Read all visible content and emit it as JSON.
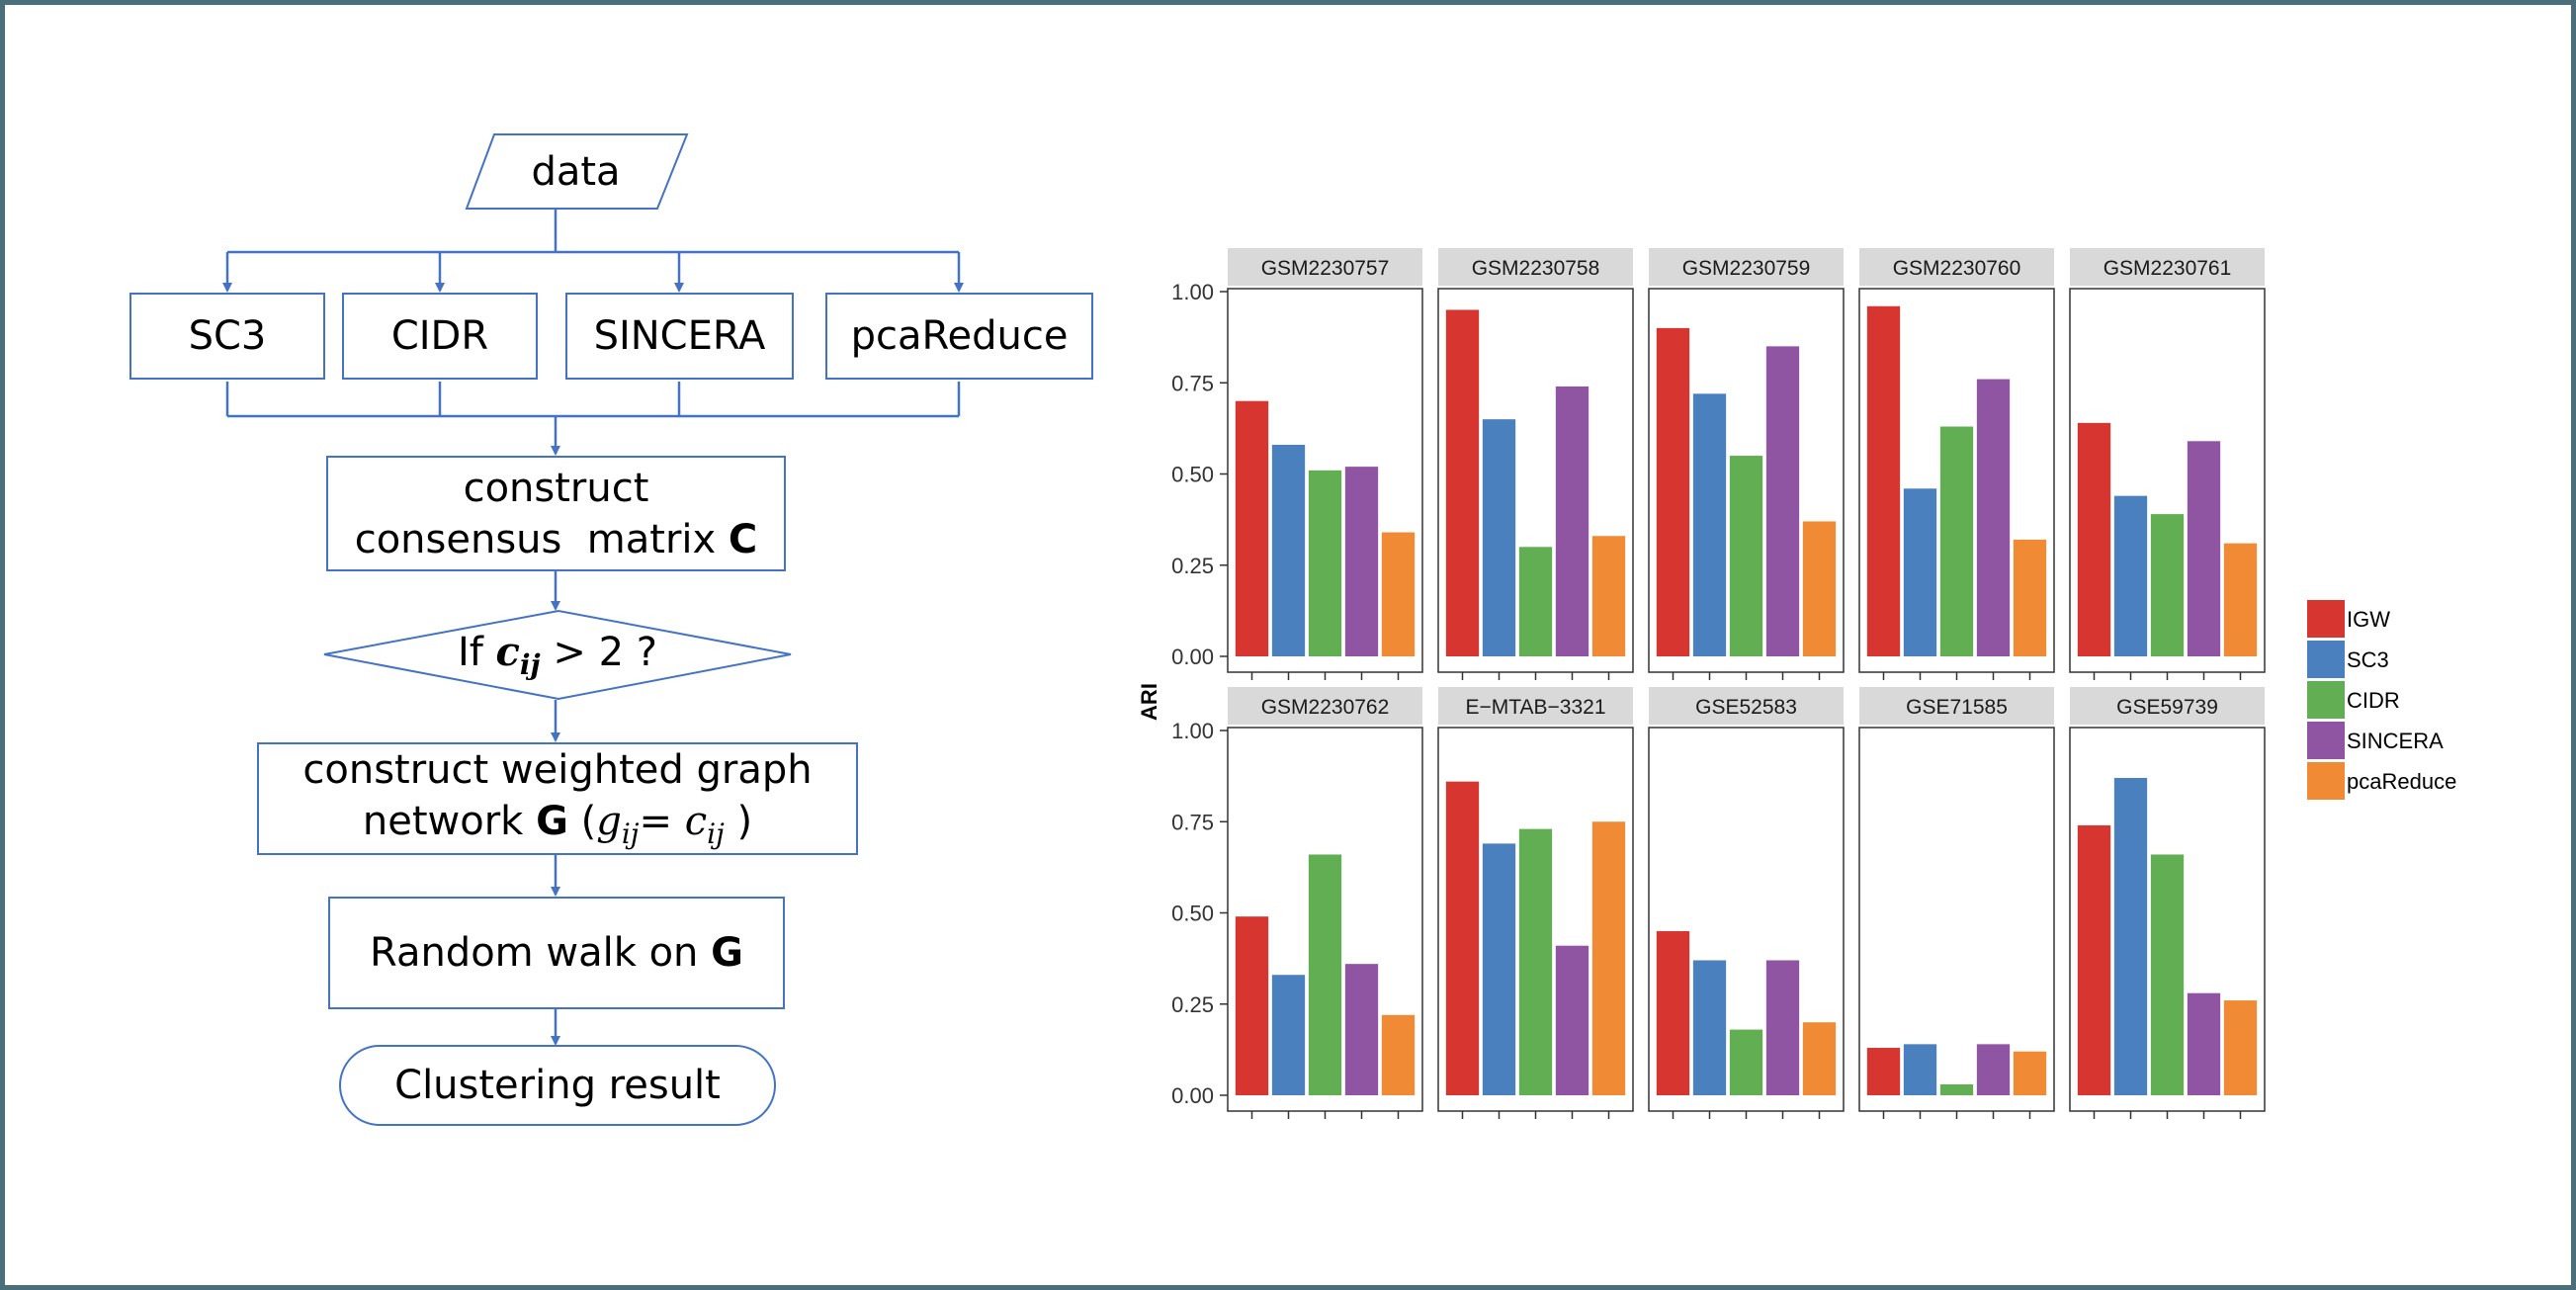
{
  "flowchart": {
    "data_node": "data",
    "methods": [
      "SC3",
      "CIDR",
      "SINCERA",
      "pcaReduce"
    ],
    "construct_line1": "construct",
    "construct_line2": "consensus  matrix ",
    "construct_bold": "C",
    "decision_prefix": "If ",
    "decision_var": "c",
    "decision_sub": "ij",
    "decision_suffix": " > 2 ?",
    "graph_line1": "construct weighted graph",
    "graph_line2_a": "network ",
    "graph_line2_bold": "G",
    "graph_line2_b": " (",
    "graph_g": "g",
    "graph_eq": "= ",
    "graph_c": "c",
    "graph_sub": "ij",
    "graph_line2_end": " )",
    "walk_text": "Random walk on ",
    "walk_bold": "G",
    "result_text": "Clustering result"
  },
  "chart_data": {
    "type": "bar",
    "ylabel": "ARI",
    "ylim": [
      0,
      1
    ],
    "yticks": [
      "0.00",
      "0.25",
      "0.50",
      "0.75",
      "1.00"
    ],
    "series_names": [
      "IGW",
      "SC3",
      "CIDR",
      "SINCERA",
      "pcaReduce"
    ],
    "colors": [
      "#d73530",
      "#4a80bd",
      "#62ae52",
      "#8f55a3",
      "#f08a35"
    ],
    "legend_position": "right",
    "panels": [
      {
        "title": "GSM2230757",
        "values": [
          0.7,
          0.58,
          0.51,
          0.52,
          0.34
        ]
      },
      {
        "title": "GSM2230758",
        "values": [
          0.95,
          0.65,
          0.3,
          0.74,
          0.33
        ]
      },
      {
        "title": "GSM2230759",
        "values": [
          0.9,
          0.72,
          0.55,
          0.85,
          0.37
        ]
      },
      {
        "title": "GSM2230760",
        "values": [
          0.96,
          0.46,
          0.63,
          0.76,
          0.32
        ]
      },
      {
        "title": "GSM2230761",
        "values": [
          0.64,
          0.44,
          0.39,
          0.59,
          0.31
        ]
      },
      {
        "title": "GSM2230762",
        "values": [
          0.49,
          0.33,
          0.66,
          0.36,
          0.22
        ]
      },
      {
        "title": "E−MTAB−3321",
        "values": [
          0.86,
          0.69,
          0.73,
          0.41,
          0.75
        ]
      },
      {
        "title": "GSE52583",
        "values": [
          0.45,
          0.37,
          0.18,
          0.37,
          0.2
        ]
      },
      {
        "title": "GSE71585",
        "values": [
          0.13,
          0.14,
          0.03,
          0.14,
          0.12
        ]
      },
      {
        "title": "GSE59739",
        "values": [
          0.74,
          0.87,
          0.66,
          0.28,
          0.26
        ]
      }
    ]
  }
}
